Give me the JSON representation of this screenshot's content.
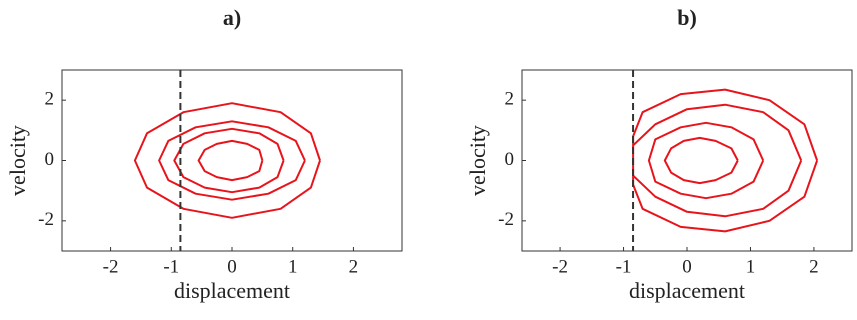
{
  "chart_data": [
    {
      "type": "line",
      "label": "a)",
      "xlabel": "displacement",
      "ylabel": "velocity",
      "xlim": [
        -2.8,
        2.8
      ],
      "ylim": [
        -3,
        3
      ],
      "xticks": [
        -2,
        -1,
        0,
        1,
        2
      ],
      "yticks": [
        -2,
        0,
        2
      ],
      "vline": -0.85,
      "series": [
        {
          "color": "#e8141b",
          "x": [
            1.45,
            1.3,
            0.8,
            0,
            -0.8,
            -1.4,
            -1.6,
            -1.4,
            -0.8,
            0,
            0.8,
            1.3,
            1.45,
            null,
            1.2,
            1.05,
            0.6,
            0,
            -0.6,
            -1.05,
            -1.2,
            -1.05,
            -0.6,
            0,
            0.6,
            1.05,
            1.2,
            null,
            0.85,
            0.75,
            0.45,
            0,
            -0.45,
            -0.8,
            -0.95,
            -0.8,
            -0.45,
            0,
            0.45,
            0.75,
            0.85,
            null,
            0.5,
            0.45,
            0.25,
            0,
            -0.25,
            -0.45,
            -0.55,
            -0.45,
            -0.25,
            0,
            0.25,
            0.45,
            0.5
          ],
          "values": [
            0,
            0.9,
            1.6,
            1.9,
            1.6,
            0.9,
            0,
            -0.9,
            -1.6,
            -1.9,
            -1.6,
            -0.9,
            0,
            null,
            0,
            0.65,
            1.1,
            1.3,
            1.1,
            0.65,
            0,
            -0.65,
            -1.1,
            -1.3,
            -1.1,
            -0.65,
            0,
            null,
            0,
            0.55,
            0.9,
            1.05,
            0.9,
            0.55,
            0,
            -0.55,
            -0.9,
            -1.05,
            -0.9,
            -0.55,
            0,
            null,
            0,
            0.35,
            0.55,
            0.65,
            0.55,
            0.35,
            0,
            -0.35,
            -0.55,
            -0.65,
            -0.55,
            -0.35,
            0
          ]
        }
      ]
    },
    {
      "type": "line",
      "label": "b)",
      "xlabel": "displacement",
      "ylabel": "velocity",
      "xlim": [
        -2.6,
        2.6
      ],
      "ylim": [
        -3,
        3
      ],
      "xticks": [
        -2,
        -1,
        0,
        1,
        2
      ],
      "yticks": [
        -2,
        0,
        2
      ],
      "vline": -0.85,
      "series": [
        {
          "color": "#e8141b",
          "x": [
            2.05,
            1.85,
            1.3,
            0.6,
            -0.1,
            -0.7,
            -0.85,
            -0.85,
            -0.7,
            -0.1,
            0.6,
            1.3,
            1.85,
            2.05,
            null,
            1.8,
            1.6,
            1.2,
            0.6,
            0,
            -0.5,
            -0.85,
            -0.85,
            -0.5,
            0,
            0.6,
            1.2,
            1.6,
            1.8,
            null,
            1.2,
            1.05,
            0.7,
            0.3,
            -0.1,
            -0.5,
            -0.6,
            -0.5,
            -0.1,
            0.3,
            0.7,
            1.05,
            1.2,
            null,
            0.8,
            0.7,
            0.45,
            0.2,
            -0.05,
            -0.25,
            -0.35,
            -0.25,
            -0.05,
            0.2,
            0.45,
            0.7,
            0.8
          ],
          "values": [
            0,
            1.2,
            2.0,
            2.35,
            2.2,
            1.6,
            0.8,
            -0.8,
            -1.6,
            -2.2,
            -2.35,
            -2.0,
            -1.2,
            0,
            null,
            0,
            1.0,
            1.6,
            1.85,
            1.7,
            1.2,
            0.5,
            -0.5,
            -1.2,
            -1.7,
            -1.85,
            -1.6,
            -1.0,
            0,
            null,
            0,
            0.7,
            1.1,
            1.25,
            1.1,
            0.7,
            0,
            -0.7,
            -1.1,
            -1.25,
            -1.1,
            -0.7,
            0,
            null,
            0,
            0.4,
            0.65,
            0.75,
            0.65,
            0.4,
            0,
            -0.4,
            -0.65,
            -0.75,
            -0.65,
            -0.4,
            0
          ]
        }
      ]
    }
  ]
}
